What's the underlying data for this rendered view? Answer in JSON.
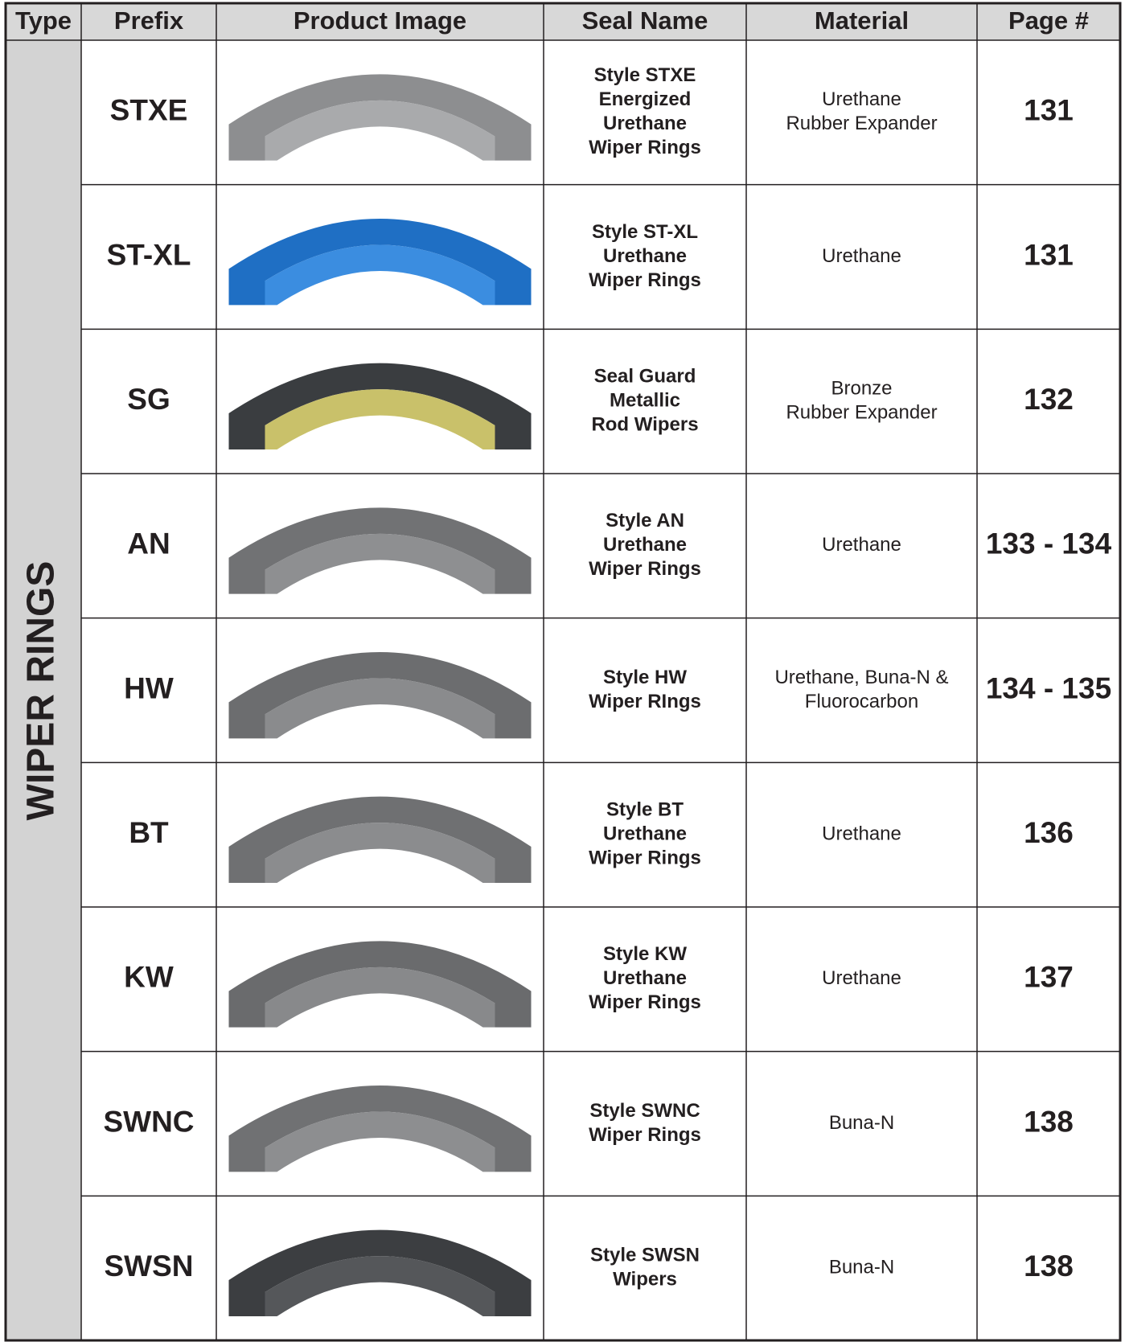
{
  "header": [
    "Type",
    "Prefix",
    "Product Image",
    "Seal Name",
    "Material",
    "Page #"
  ],
  "type_label": "WIPER RINGS",
  "rows": [
    {
      "prefix": "STXE",
      "seal_name": [
        "Style STXE",
        "Energized",
        "Urethane",
        "Wiper Rings"
      ],
      "material": [
        "Urethane",
        "Rubber Expander"
      ],
      "page": "131"
    },
    {
      "prefix": "ST-XL",
      "seal_name": [
        "Style ST-XL",
        "Urethane",
        "Wiper Rings"
      ],
      "material": [
        "Urethane"
      ],
      "page": "131"
    },
    {
      "prefix": "SG",
      "seal_name": [
        "Seal Guard",
        "Metallic",
        "Rod Wipers"
      ],
      "material": [
        "Bronze",
        "Rubber Expander"
      ],
      "page": "132"
    },
    {
      "prefix": "AN",
      "seal_name": [
        "Style AN",
        "Urethane",
        "Wiper Rings"
      ],
      "material": [
        "Urethane"
      ],
      "page": "133 - 134"
    },
    {
      "prefix": "HW",
      "seal_name": [
        "Style HW",
        "Wiper RIngs"
      ],
      "material": [
        "Urethane, Buna-N &",
        "Fluorocarbon"
      ],
      "page": "134 - 135"
    },
    {
      "prefix": "BT",
      "seal_name": [
        "Style BT",
        "Urethane",
        "Wiper Rings"
      ],
      "material": [
        "Urethane"
      ],
      "page": "136"
    },
    {
      "prefix": "KW",
      "seal_name": [
        "Style KW",
        "Urethane",
        "Wiper Rings"
      ],
      "material": [
        "Urethane"
      ],
      "page": "137"
    },
    {
      "prefix": "SWNC",
      "seal_name": [
        "Style SWNC",
        "Wiper Rings"
      ],
      "material": [
        "Buna-N"
      ],
      "page": "138"
    },
    {
      "prefix": "SWSN",
      "seal_name": [
        "Style SWSN",
        "Wipers"
      ],
      "material": [
        "Buna-N"
      ],
      "page": "138"
    }
  ]
}
